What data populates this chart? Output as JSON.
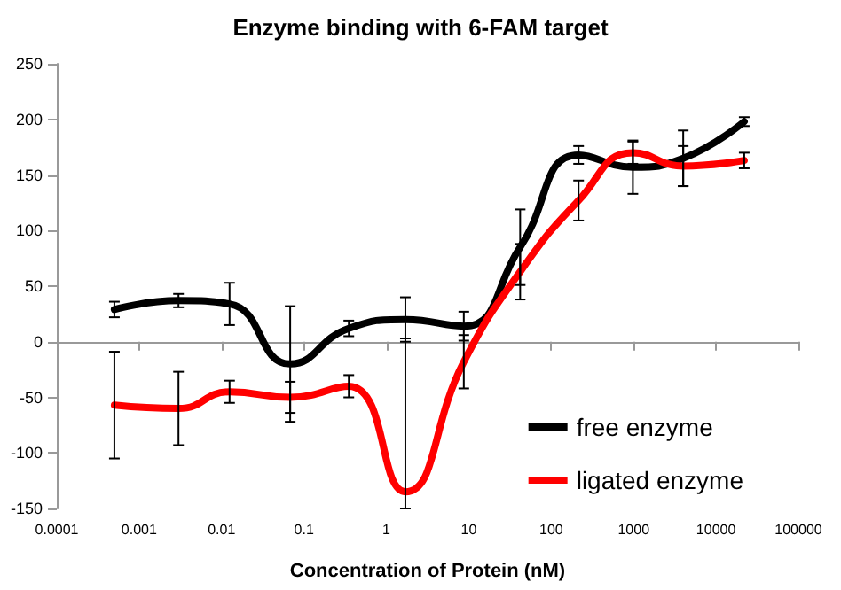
{
  "chart_data": {
    "type": "line",
    "title": "Enzyme binding with 6-FAM target",
    "xlabel": "Concentration of Protein (nM)",
    "x": [
      0.0005,
      0.003,
      0.0125,
      0.068,
      0.35,
      1.7,
      8.7,
      42,
      215,
      980,
      4000,
      22000
    ],
    "log": "x",
    "xlim": [
      0.0001,
      100000
    ],
    "xticks": [
      0.0001,
      0.001,
      0.01,
      0.1,
      1,
      10,
      100,
      1000,
      10000,
      100000
    ],
    "ylim": [
      -150,
      250
    ],
    "yticks": [
      -150,
      -100,
      -50,
      0,
      50,
      100,
      150,
      200,
      250
    ],
    "legend": "bottom right",
    "marker": "none",
    "line_style": "solid",
    "series": [
      {
        "name": "free enzyme",
        "color": "#000000",
        "values": [
          29,
          37,
          34,
          -20,
          12,
          20,
          14,
          85,
          168,
          157,
          165,
          198
        ],
        "errors": [
          7,
          6,
          19,
          52,
          7,
          20,
          13,
          34,
          8,
          24,
          25,
          4
        ]
      },
      {
        "name": "ligated enzyme",
        "color": "#ff0000",
        "values": [
          -57,
          -60,
          -45,
          -50,
          -40,
          -135,
          -18,
          63,
          127,
          170,
          158,
          163
        ],
        "errors": [
          48,
          33,
          10,
          14,
          10,
          [
            -150,
            3
          ],
          24,
          25,
          18,
          10,
          18,
          7
        ]
      }
    ]
  }
}
